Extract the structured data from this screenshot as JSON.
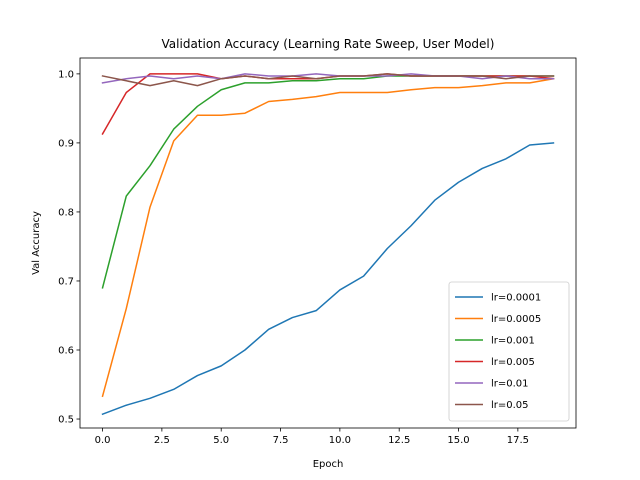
{
  "chart_data": {
    "type": "line",
    "title": "Validation Accuracy (Learning Rate Sweep, User Model)",
    "xlabel": "Epoch",
    "ylabel": "Val Accuracy",
    "xlim": [
      -0.95,
      19.95
    ],
    "ylim": [
      0.487,
      1.023
    ],
    "xticks": [
      0,
      2.5,
      5,
      7.5,
      10,
      12.5,
      15,
      17.5
    ],
    "xtick_labels": [
      "0.0",
      "2.5",
      "5.0",
      "7.5",
      "10.0",
      "12.5",
      "15.0",
      "17.5"
    ],
    "yticks": [
      0.5,
      0.6,
      0.7,
      0.8,
      0.9,
      1.0
    ],
    "ytick_labels": [
      "0.5",
      "0.6",
      "0.7",
      "0.8",
      "0.9",
      "1.0"
    ],
    "grid": false,
    "legend_position": "lower-right",
    "x": [
      0,
      1,
      2,
      3,
      4,
      5,
      6,
      7,
      8,
      9,
      10,
      11,
      12,
      13,
      14,
      15,
      16,
      17,
      18,
      19
    ],
    "series": [
      {
        "name": "lr=0.0001",
        "color": "#1f77b4",
        "values": [
          0.507,
          0.52,
          0.53,
          0.543,
          0.563,
          0.577,
          0.6,
          0.63,
          0.647,
          0.657,
          0.687,
          0.707,
          0.747,
          0.78,
          0.817,
          0.843,
          0.863,
          0.877,
          0.897,
          0.9
        ]
      },
      {
        "name": "lr=0.0005",
        "color": "#ff7f0e",
        "values": [
          0.533,
          0.66,
          0.807,
          0.903,
          0.94,
          0.94,
          0.943,
          0.96,
          0.963,
          0.967,
          0.973,
          0.973,
          0.973,
          0.977,
          0.98,
          0.98,
          0.983,
          0.987,
          0.987,
          0.993
        ]
      },
      {
        "name": "lr=0.001",
        "color": "#2ca02c",
        "values": [
          0.69,
          0.823,
          0.867,
          0.92,
          0.953,
          0.977,
          0.987,
          0.987,
          0.99,
          0.99,
          0.993,
          0.993,
          0.997,
          0.997,
          0.997,
          0.997,
          0.997,
          0.997,
          0.997,
          0.997
        ]
      },
      {
        "name": "lr=0.005",
        "color": "#d62728",
        "values": [
          0.913,
          0.973,
          1.0,
          1.0,
          1.0,
          0.993,
          0.997,
          0.993,
          0.993,
          0.993,
          0.997,
          0.997,
          1.0,
          0.997,
          0.997,
          0.997,
          0.997,
          0.997,
          0.997,
          0.993
        ]
      },
      {
        "name": "lr=0.01",
        "color": "#9467bd",
        "values": [
          0.987,
          0.993,
          0.997,
          0.993,
          0.997,
          0.993,
          1.0,
          0.997,
          0.997,
          1.0,
          0.997,
          0.997,
          0.997,
          1.0,
          0.997,
          0.997,
          0.993,
          0.997,
          0.993,
          0.993
        ]
      },
      {
        "name": "lr=0.05",
        "color": "#8c564b",
        "values": [
          0.997,
          0.99,
          0.983,
          0.99,
          0.983,
          0.993,
          0.997,
          0.993,
          0.997,
          0.993,
          0.997,
          0.997,
          1.0,
          0.997,
          0.997,
          0.997,
          0.997,
          0.993,
          0.997,
          0.997
        ]
      }
    ]
  }
}
